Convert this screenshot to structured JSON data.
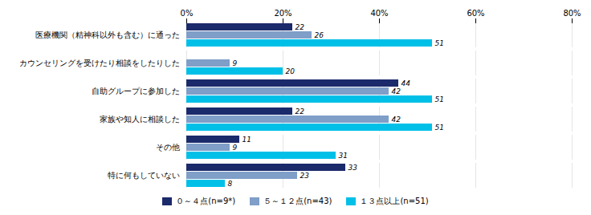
{
  "chart_data": {
    "type": "bar",
    "orientation": "horizontal",
    "categories": [
      "医療機関（精神科以外も含む）に通った",
      "カウンセリングを受けたり相談をしたりした",
      "自助グループに参加した",
      "家族や知人に相談した",
      "その他",
      "特に何もしていない"
    ],
    "series": [
      {
        "name": "０～４点(n=9*)",
        "color": "#1b2a6b",
        "values": [
          22,
          0,
          44,
          22,
          11,
          33
        ]
      },
      {
        "name": "５～１２点(n=43)",
        "color": "#7f9ec8",
        "values": [
          26,
          9,
          42,
          42,
          9,
          23
        ]
      },
      {
        "name": "１３点以上(n=51)",
        "color": "#00c0e8",
        "values": [
          51,
          20,
          51,
          51,
          31,
          8
        ]
      }
    ],
    "xlim": [
      0,
      80
    ],
    "xticks": [
      {
        "value": 0,
        "label": "0%"
      },
      {
        "value": 20,
        "label": "20%"
      },
      {
        "value": 40,
        "label": "40%"
      },
      {
        "value": 60,
        "label": "60%"
      },
      {
        "value": 80,
        "label": "80%"
      }
    ],
    "grid": true,
    "legend": "bottom",
    "data_labels": true
  }
}
